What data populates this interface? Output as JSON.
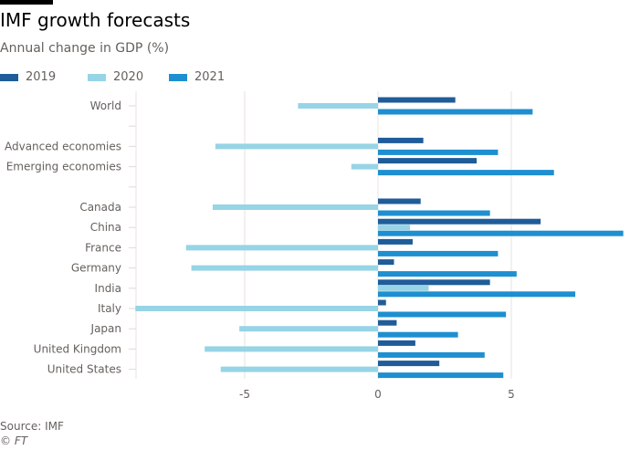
{
  "title": "IMF growth forecasts",
  "subtitle": "Annual change in GDP (%)",
  "source": "Source: IMF",
  "credit": "© FT",
  "chart_data": {
    "type": "bar",
    "orientation": "horizontal",
    "categories": [
      "World",
      "",
      "Advanced economies",
      "Emerging economies",
      "",
      "Canada",
      "China",
      "France",
      "Germany",
      "India",
      "Italy",
      "Japan",
      "United Kingdom",
      "United States"
    ],
    "series": [
      {
        "name": "2019",
        "color": "#1f5c99",
        "values": [
          2.9,
          null,
          1.7,
          3.7,
          null,
          1.6,
          6.1,
          1.3,
          0.6,
          4.2,
          0.3,
          0.7,
          1.4,
          2.3
        ]
      },
      {
        "name": "2020",
        "color": "#96d4e6",
        "values": [
          -3.0,
          null,
          -6.1,
          -1.0,
          null,
          -6.2,
          1.2,
          -7.2,
          -7.0,
          1.9,
          -9.1,
          -5.2,
          -6.5,
          -5.9
        ]
      },
      {
        "name": "2021",
        "color": "#1e8fd0",
        "values": [
          5.8,
          null,
          4.5,
          6.6,
          null,
          4.2,
          9.2,
          4.5,
          5.2,
          7.4,
          4.8,
          3.0,
          4.0,
          4.7
        ]
      }
    ],
    "xticks": [
      "-5",
      "0",
      "5"
    ],
    "xlim": [
      -9.1,
      9.2
    ],
    "grid": true,
    "legend": "top-left"
  }
}
